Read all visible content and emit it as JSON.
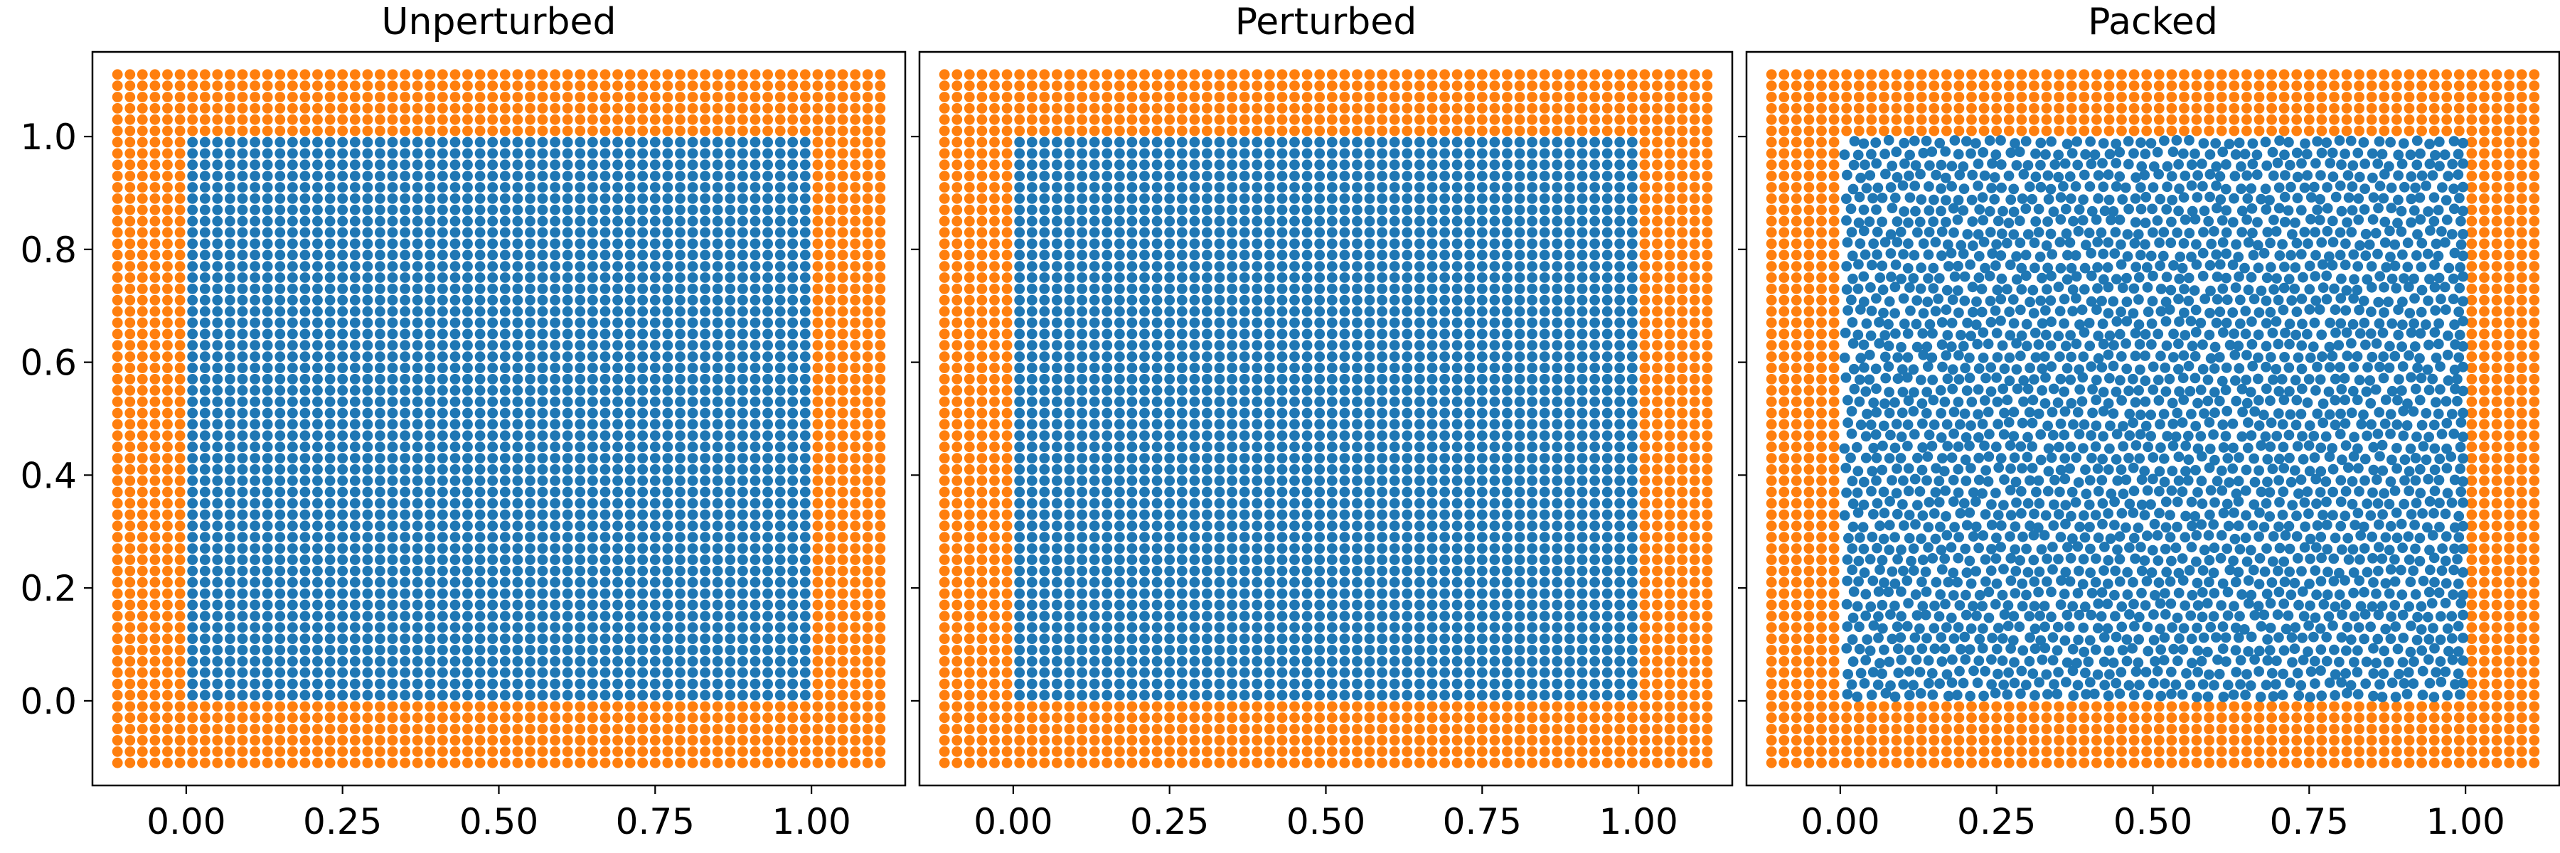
{
  "chart_data": [
    {
      "type": "scatter",
      "title": "Unperturbed",
      "xlim": [
        -0.15,
        1.15
      ],
      "ylim": [
        -0.15,
        1.15
      ],
      "xticks": [
        0.0,
        0.25,
        0.5,
        0.75,
        1.0
      ],
      "xtick_labels": [
        "0.00",
        "0.25",
        "0.50",
        "0.75",
        "1.00"
      ],
      "yticks": [
        0.0,
        0.2,
        0.4,
        0.6,
        0.8,
        1.0
      ],
      "ytick_labels": [
        "0.0",
        "0.2",
        "0.4",
        "0.6",
        "0.8",
        "1.0"
      ],
      "series": [
        {
          "color": "#ff7f0e",
          "role": "boundary",
          "pattern": "regular grid",
          "spacing": 0.02,
          "x_range": [
            -0.11,
            1.11
          ],
          "y_range": [
            -0.11,
            1.11
          ],
          "excludes_region": [
            [
              0,
              1
            ],
            [
              0,
              1
            ]
          ]
        },
        {
          "color": "#1f77b4",
          "role": "interior",
          "pattern": "regular grid",
          "spacing": 0.02,
          "x_range": [
            0.01,
            0.99
          ],
          "y_range": [
            0.01,
            0.99
          ]
        }
      ]
    },
    {
      "type": "scatter",
      "title": "Perturbed",
      "xlim": [
        -0.15,
        1.15
      ],
      "ylim": [
        -0.15,
        1.15
      ],
      "xticks": [
        0.0,
        0.25,
        0.5,
        0.75,
        1.0
      ],
      "xtick_labels": [
        "0.00",
        "0.25",
        "0.50",
        "0.75",
        "1.00"
      ],
      "yticks": [
        0.0,
        0.2,
        0.4,
        0.6,
        0.8,
        1.0
      ],
      "series": [
        {
          "color": "#ff7f0e",
          "role": "boundary",
          "pattern": "regular grid",
          "spacing": 0.02,
          "x_range": [
            -0.11,
            1.11
          ],
          "y_range": [
            -0.11,
            1.11
          ],
          "excludes_region": [
            [
              0,
              1
            ],
            [
              0,
              1
            ]
          ]
        },
        {
          "color": "#1f77b4",
          "role": "interior",
          "pattern": "randomly perturbed grid",
          "spacing": 0.02,
          "x_range": [
            0.01,
            0.99
          ],
          "y_range": [
            0.01,
            0.99
          ]
        }
      ]
    },
    {
      "type": "scatter",
      "title": "Packed",
      "xlim": [
        -0.15,
        1.15
      ],
      "ylim": [
        -0.15,
        1.15
      ],
      "xticks": [
        0.0,
        0.25,
        0.5,
        0.75,
        1.0
      ],
      "xtick_labels": [
        "0.00",
        "0.25",
        "0.50",
        "0.75",
        "1.00"
      ],
      "yticks": [
        0.0,
        0.2,
        0.4,
        0.6,
        0.8,
        1.0
      ],
      "series": [
        {
          "color": "#ff7f0e",
          "role": "boundary",
          "pattern": "regular grid",
          "spacing": 0.02,
          "x_range": [
            -0.11,
            1.11
          ],
          "y_range": [
            -0.11,
            1.11
          ],
          "excludes_region": [
            [
              0,
              1
            ],
            [
              0,
              1
            ]
          ]
        },
        {
          "color": "#1f77b4",
          "role": "interior",
          "pattern": "packed (hexagonal-like)",
          "spacing": 0.02,
          "x_range": [
            0.01,
            0.99
          ],
          "y_range": [
            0.01,
            0.99
          ]
        }
      ]
    }
  ]
}
